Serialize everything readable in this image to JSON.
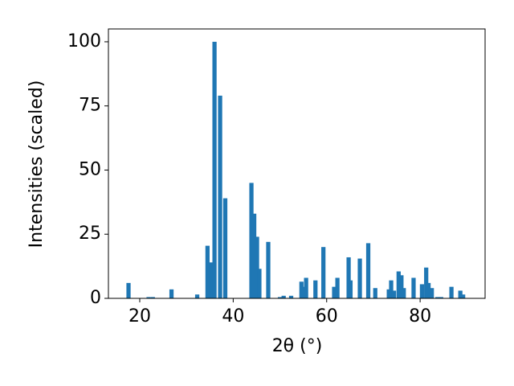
{
  "chart_data": {
    "type": "bar",
    "xlabel": "2θ (°)",
    "ylabel": "Intensities (scaled)",
    "color": "#1f77b4",
    "x": [
      17.6,
      21.9,
      22.8,
      26.8,
      32.3,
      34.5,
      35.3,
      36.0,
      37.2,
      38.3,
      43.9,
      44.5,
      45.1,
      45.6,
      47.5,
      50.0,
      50.8,
      52.4,
      54.6,
      55.1,
      55.6,
      57.6,
      59.3,
      61.6,
      62.3,
      64.7,
      65.1,
      67.1,
      68.9,
      70.4,
      73.3,
      73.8,
      74.4,
      75.4,
      76.0,
      76.5,
      78.6,
      80.4,
      81.3,
      81.8,
      82.5,
      83.7,
      84.5,
      86.7,
      88.6,
      89.2
    ],
    "values": [
      6,
      0.5,
      0.5,
      3.5,
      1.5,
      20.5,
      14,
      100,
      79,
      39,
      45,
      33,
      24,
      11.5,
      22,
      0.5,
      1,
      1,
      6.5,
      4.5,
      8,
      7,
      20,
      4.5,
      8,
      16,
      7,
      15.5,
      21.5,
      4,
      3.5,
      7,
      3,
      10.5,
      9,
      4,
      8,
      5.5,
      12,
      6,
      4,
      0.5,
      0.5,
      4.5,
      3,
      1.5
    ],
    "xlim": [
      13.3,
      93.9
    ],
    "ylim": [
      0,
      105
    ],
    "xticks": [
      20,
      40,
      60,
      80
    ],
    "yticks": [
      0,
      25,
      50,
      75,
      100
    ]
  }
}
